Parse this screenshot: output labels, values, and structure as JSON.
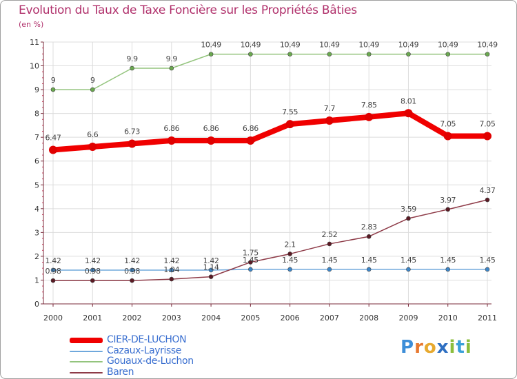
{
  "title": "Evolution du Taux de Taxe Foncière sur les Propriétés Bâties",
  "subtitle": "(en %)",
  "logo": "Proxiti",
  "colors": {
    "text_title": "#b0306b",
    "axis": "#7a2a3a",
    "grid": "#dcdcdc",
    "legend_text": "#3a6fd0"
  },
  "chart_data": {
    "type": "line",
    "title": "Evolution du Taux de Taxe Foncière sur les Propriétés Bâties",
    "ylabel": "(en %)",
    "xlabel": "",
    "x": [
      "2000",
      "2001",
      "2002",
      "2003",
      "2004",
      "2005",
      "2006",
      "2007",
      "2008",
      "2009",
      "2010",
      "2011"
    ],
    "ylim": [
      0,
      11
    ],
    "yticks": [
      "0",
      "1",
      "2",
      "3",
      "4",
      "5",
      "6",
      "7",
      "8",
      "9",
      "10",
      "11"
    ],
    "grid": true,
    "legend_position": "bottom-left",
    "series": [
      {
        "name": "CIER-DE-LUCHON",
        "color": "#f00000",
        "marker_color": "#e00000",
        "emphasis": "thick",
        "values": [
          6.47,
          6.6,
          6.73,
          6.86,
          6.86,
          6.86,
          7.55,
          7.7,
          7.85,
          8.01,
          7.05,
          7.05
        ],
        "labels": [
          "6.47",
          "6.6",
          "6.73",
          "6.86",
          "6.86",
          "6.86",
          "7.55",
          "7.7",
          "7.85",
          "8.01",
          "7.05",
          "7.05"
        ]
      },
      {
        "name": "Cazaux-Layrisse",
        "color": "#6fa8dc",
        "marker_color": "#3d85c6",
        "emphasis": "thin",
        "values": [
          1.42,
          1.42,
          1.42,
          1.42,
          1.42,
          1.45,
          1.45,
          1.45,
          1.45,
          1.45,
          1.45,
          1.45
        ],
        "labels": [
          "1.42",
          "1.42",
          "1.42",
          "1.42",
          "1.42",
          "1.45",
          "1.45",
          "1.45",
          "1.45",
          "1.45",
          "1.45",
          "1.45"
        ]
      },
      {
        "name": "Gouaux-de-Luchon",
        "color": "#93c47d",
        "marker_color": "#6aa84f",
        "emphasis": "thin",
        "values": [
          9,
          9,
          9.9,
          9.9,
          10.49,
          10.49,
          10.49,
          10.49,
          10.49,
          10.49,
          10.49,
          10.49
        ],
        "labels": [
          "9",
          "9",
          "9.9",
          "9.9",
          "10.49",
          "10.49",
          "10.49",
          "10.49",
          "10.49",
          "10.49",
          "10.49",
          "10.49"
        ]
      },
      {
        "name": "Baren",
        "color": "#8e3b48",
        "marker_color": "#5a1a24",
        "emphasis": "thin",
        "values": [
          0.98,
          0.98,
          0.98,
          1.04,
          1.14,
          1.75,
          2.1,
          2.52,
          2.83,
          3.59,
          3.97,
          4.37
        ],
        "labels": [
          "0.98",
          "0.98",
          "0.98",
          "1.04",
          "1.14",
          "1.75",
          "2.1",
          "2.52",
          "2.83",
          "3.59",
          "3.97",
          "4.37"
        ]
      }
    ]
  }
}
